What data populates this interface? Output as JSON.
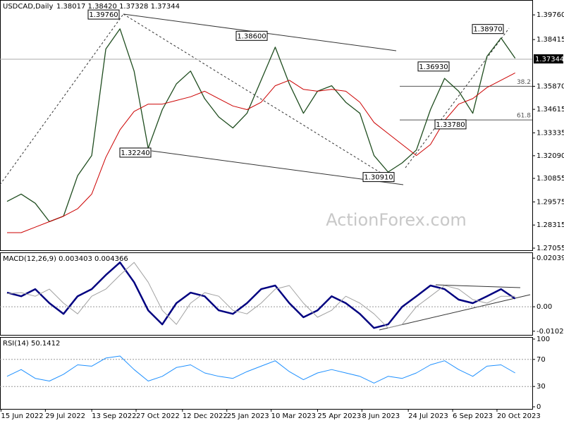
{
  "chart_data": [
    {
      "type": "line",
      "title": "USDCAD,Daily",
      "quote": "1.38017 1.38420 1.37328 1.37344",
      "x": [
        "2022-06-21",
        "2022-07-05",
        "2022-07-19",
        "2022-08-02",
        "2022-08-16",
        "2022-08-30",
        "2022-09-13",
        "2022-09-27",
        "2022-10-11",
        "2022-10-25",
        "2022-11-08",
        "2022-11-22",
        "2022-12-06",
        "2022-12-20",
        "2023-01-03",
        "2023-01-17",
        "2023-01-31",
        "2023-02-14",
        "2023-02-28",
        "2023-03-14",
        "2023-03-28",
        "2023-04-11",
        "2023-04-25",
        "2023-05-09",
        "2023-05-23",
        "2023-06-06",
        "2023-06-20",
        "2023-07-04",
        "2023-07-18",
        "2023-08-01",
        "2023-08-15",
        "2023-08-29",
        "2023-09-12",
        "2023-09-26",
        "2023-10-10",
        "2023-10-24",
        "2023-11-07"
      ],
      "xlim": [
        "2022-06-14",
        "2023-11-24"
      ],
      "series": [
        {
          "color": "#1f4d1f",
          "values": [
            1.296,
            1.3,
            1.295,
            1.285,
            1.288,
            1.31,
            1.321,
            1.379,
            1.39,
            1.367,
            1.325,
            1.346,
            1.36,
            1.367,
            1.352,
            1.342,
            1.336,
            1.344,
            1.362,
            1.38,
            1.36,
            1.344,
            1.356,
            1.359,
            1.35,
            1.344,
            1.321,
            1.312,
            1.317,
            1.324,
            1.346,
            1.363,
            1.356,
            1.344,
            1.375,
            1.385,
            1.374
          ]
        },
        {
          "color": "#cc0000",
          "values": [
            1.279,
            1.279,
            1.282,
            1.285,
            1.288,
            1.292,
            1.3,
            1.32,
            1.335,
            1.345,
            1.349,
            1.349,
            1.351,
            1.353,
            1.356,
            1.352,
            1.348,
            1.346,
            1.35,
            1.359,
            1.362,
            1.357,
            1.356,
            1.357,
            1.356,
            1.35,
            1.339,
            1.333,
            1.327,
            1.321,
            1.327,
            1.34,
            1.349,
            1.352,
            1.358,
            1.362,
            1.366
          ]
        }
      ],
      "ylim": [
        1.2694,
        1.4057
      ],
      "yticks": [
        {
          "value": 1.3976,
          "label": "1.39760"
        },
        {
          "value": 1.38415,
          "label": "1.38415"
        },
        {
          "value": 1.3587,
          "label": "1.35870"
        },
        {
          "value": 1.34615,
          "label": "1.34615"
        },
        {
          "value": 1.33335,
          "label": "1.33335"
        },
        {
          "value": 1.3209,
          "label": "1.32090"
        },
        {
          "value": 1.30855,
          "label": "1.30855"
        },
        {
          "value": 1.29575,
          "label": "1.29575"
        },
        {
          "value": 1.28315,
          "label": "1.28315"
        },
        {
          "value": 1.27055,
          "label": "1.27055"
        }
      ],
      "last": {
        "value": 1.37344,
        "label": "1.37344"
      },
      "annotations": [
        {
          "value": 1.3976,
          "label": "1.39760"
        },
        {
          "value": 1.386,
          "label": "1.38600"
        },
        {
          "value": 1.3224,
          "label": "1.32240"
        },
        {
          "value": 1.3091,
          "label": "1.30910"
        },
        {
          "value": 1.3693,
          "label": "1.36930"
        },
        {
          "value": 1.3378,
          "label": "1.33780"
        },
        {
          "value": 1.3897,
          "label": "1.38970"
        }
      ],
      "fib_levels": [
        {
          "value": 1.3587,
          "label": "38.2"
        },
        {
          "value": 1.3404,
          "label": "61.8"
        }
      ],
      "watermark": "ActionForex.com"
    },
    {
      "type": "line",
      "title": "MACD(12,26,9) 0.003403 0.004366",
      "x": [
        "2022-06-21",
        "2022-07-05",
        "2022-07-19",
        "2022-08-02",
        "2022-08-16",
        "2022-08-30",
        "2022-09-13",
        "2022-09-27",
        "2022-10-11",
        "2022-10-25",
        "2022-11-08",
        "2022-11-22",
        "2022-12-06",
        "2022-12-20",
        "2023-01-03",
        "2023-01-17",
        "2023-01-31",
        "2023-02-14",
        "2023-02-28",
        "2023-03-14",
        "2023-03-28",
        "2023-04-11",
        "2023-04-25",
        "2023-05-09",
        "2023-05-23",
        "2023-06-06",
        "2023-06-20",
        "2023-07-04",
        "2023-07-18",
        "2023-08-01",
        "2023-08-15",
        "2023-08-29",
        "2023-09-12",
        "2023-09-26",
        "2023-10-10",
        "2023-10-24",
        "2023-11-07"
      ],
      "xlim": [
        "2022-06-14",
        "2023-11-24"
      ],
      "series": [
        {
          "color": "#000080",
          "values": [
            0.0059,
            0.0044,
            0.0074,
            0.0015,
            -0.003,
            0.0044,
            0.0074,
            0.0133,
            0.0186,
            0.0103,
            -0.0015,
            -0.0074,
            0.0015,
            0.0059,
            0.0044,
            -0.0015,
            -0.003,
            0.0015,
            0.0074,
            0.0089,
            0.0015,
            -0.0044,
            -0.0015,
            0.0044,
            0.0015,
            -0.003,
            -0.0089,
            -0.0074,
            0,
            0.0044,
            0.0089,
            0.0074,
            0.003,
            0.0015,
            0.0044,
            0.0074,
            0.0034
          ]
        },
        {
          "color": "#a0a0a0",
          "values": [
            0.0055,
            0.0059,
            0.0044,
            0.0074,
            0.0015,
            -0.003,
            0.0044,
            0.0074,
            0.0133,
            0.0186,
            0.0103,
            -0.0015,
            -0.0074,
            0.0015,
            0.0059,
            0.0044,
            -0.0015,
            -0.003,
            0.0015,
            0.0074,
            0.0089,
            0.0015,
            -0.0044,
            -0.0015,
            0.0044,
            0.0015,
            -0.003,
            -0.0089,
            -0.0074,
            0,
            0.0044,
            0.0089,
            0.0074,
            0.003,
            0.0015,
            0.0044,
            0.0044
          ]
        }
      ],
      "ylim": [
        -0.0118,
        0.0228
      ],
      "yticks": [
        0.020399,
        {
          "value": 0,
          "label": "0.00"
        },
        -0.01026
      ],
      "levels": [
        0
      ]
    },
    {
      "type": "line",
      "title": "RSI(14) 50.1412",
      "x": [
        "2022-06-21",
        "2022-07-05",
        "2022-07-19",
        "2022-08-02",
        "2022-08-16",
        "2022-08-30",
        "2022-09-13",
        "2022-09-27",
        "2022-10-11",
        "2022-10-25",
        "2022-11-08",
        "2022-11-22",
        "2022-12-06",
        "2022-12-20",
        "2023-01-03",
        "2023-01-17",
        "2023-01-31",
        "2023-02-14",
        "2023-02-28",
        "2023-03-14",
        "2023-03-28",
        "2023-04-11",
        "2023-04-25",
        "2023-05-09",
        "2023-05-23",
        "2023-06-06",
        "2023-06-20",
        "2023-07-04",
        "2023-07-18",
        "2023-08-01",
        "2023-08-15",
        "2023-08-29",
        "2023-09-12",
        "2023-09-26",
        "2023-10-10",
        "2023-10-24",
        "2023-11-07"
      ],
      "xlim": [
        "2022-06-14",
        "2023-11-24"
      ],
      "series": [
        {
          "color": "#1e90ff",
          "values": [
            45,
            55,
            42,
            38,
            48,
            62,
            60,
            72,
            75,
            55,
            38,
            45,
            58,
            62,
            50,
            45,
            42,
            52,
            60,
            68,
            52,
            40,
            50,
            55,
            50,
            45,
            35,
            45,
            42,
            50,
            62,
            68,
            55,
            45,
            60,
            62,
            50
          ]
        }
      ],
      "ylim": [
        -3.1,
        103.1
      ],
      "yticks": [
        100,
        70,
        30,
        0
      ],
      "levels": [
        70,
        30
      ],
      "xticks": [
        {
          "value": "2022-06-15",
          "label": "15 Jun 2022"
        },
        {
          "value": "2022-07-29",
          "label": "29 Jul 2022"
        },
        {
          "value": "2022-09-13",
          "label": "13 Sep 2022"
        },
        {
          "value": "2022-10-27",
          "label": "27 Oct 2022"
        },
        {
          "value": "2022-12-12",
          "label": "12 Dec 2022"
        },
        {
          "value": "2023-01-25",
          "label": "25 Jan 2023"
        },
        {
          "value": "2023-03-10",
          "label": "10 Mar 2023"
        },
        {
          "value": "2023-04-25",
          "label": "25 Apr 2023"
        },
        {
          "value": "2023-06-08",
          "label": "8 Jun 2023"
        },
        {
          "value": "2023-07-24",
          "label": "24 Jul 2023"
        },
        {
          "value": "2023-09-06",
          "label": "6 Sep 2023"
        },
        {
          "value": "2023-10-20",
          "label": "20 Oct 2023"
        }
      ]
    }
  ]
}
